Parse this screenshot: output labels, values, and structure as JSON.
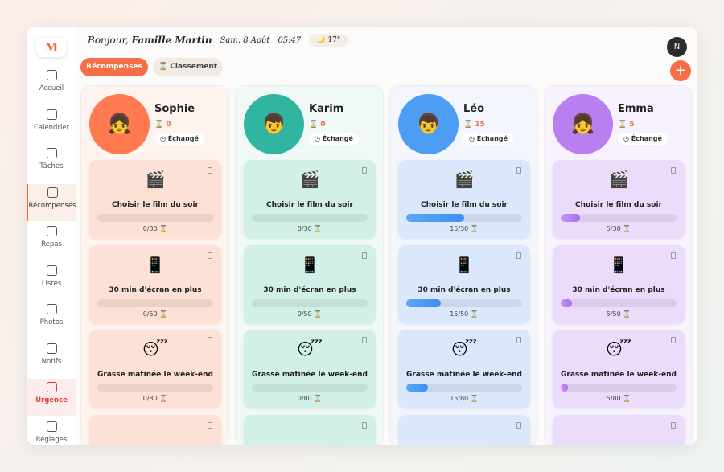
{
  "header": {
    "greeting": "Bonjour,",
    "family": "Famille Martin",
    "date": "Sam. 8 Août",
    "time": "05:47",
    "temperature": "17°",
    "user_initial": "N"
  },
  "sidebar": {
    "logo": "M",
    "items": [
      "Accueil",
      "Calendrier",
      "Tâches",
      "Récompenses",
      "Repas",
      "Listes",
      "Photos",
      "Notifs",
      "Urgence",
      "Réglages"
    ]
  },
  "tabs": [
    "Récompenses",
    "Classement"
  ],
  "children": [
    {
      "name": "Sophie",
      "points": 0,
      "status": "Échangé",
      "rewards": [
        {
          "title": "Choisir le film du soir",
          "value": 0,
          "target": 30,
          "label": "0/30"
        },
        {
          "title": "30 min d'écran en plus",
          "value": 0,
          "target": 50,
          "label": "0/50"
        },
        {
          "title": "Grasse matinée le week-end",
          "value": 0,
          "target": 80,
          "label": "0/80"
        }
      ]
    },
    {
      "name": "Karim",
      "points": 0,
      "status": "Échangé",
      "rewards": [
        {
          "title": "Choisir le film du soir",
          "value": 0,
          "target": 30,
          "label": "0/30"
        },
        {
          "title": "30 min d'écran en plus",
          "value": 0,
          "target": 50,
          "label": "0/50"
        },
        {
          "title": "Grasse matinée le week-end",
          "value": 0,
          "target": 80,
          "label": "0/80"
        }
      ]
    },
    {
      "name": "Léo",
      "points": 15,
      "status": "Échangé",
      "rewards": [
        {
          "title": "Choisir le film du soir",
          "value": 15,
          "target": 30,
          "label": "15/30"
        },
        {
          "title": "30 min d'écran en plus",
          "value": 15,
          "target": 50,
          "label": "15/50"
        },
        {
          "title": "Grasse matinée le week-end",
          "value": 15,
          "target": 80,
          "label": "15/80"
        }
      ]
    },
    {
      "name": "Emma",
      "points": 5,
      "status": "Échangé",
      "rewards": [
        {
          "title": "Choisir le film du soir",
          "value": 5,
          "target": 30,
          "label": "5/30"
        },
        {
          "title": "30 min d'écran en plus",
          "value": 5,
          "target": 50,
          "label": "5/50"
        },
        {
          "title": "Grasse matinée le week-end",
          "value": 5,
          "target": 80,
          "label": "5/80"
        }
      ]
    }
  ]
}
